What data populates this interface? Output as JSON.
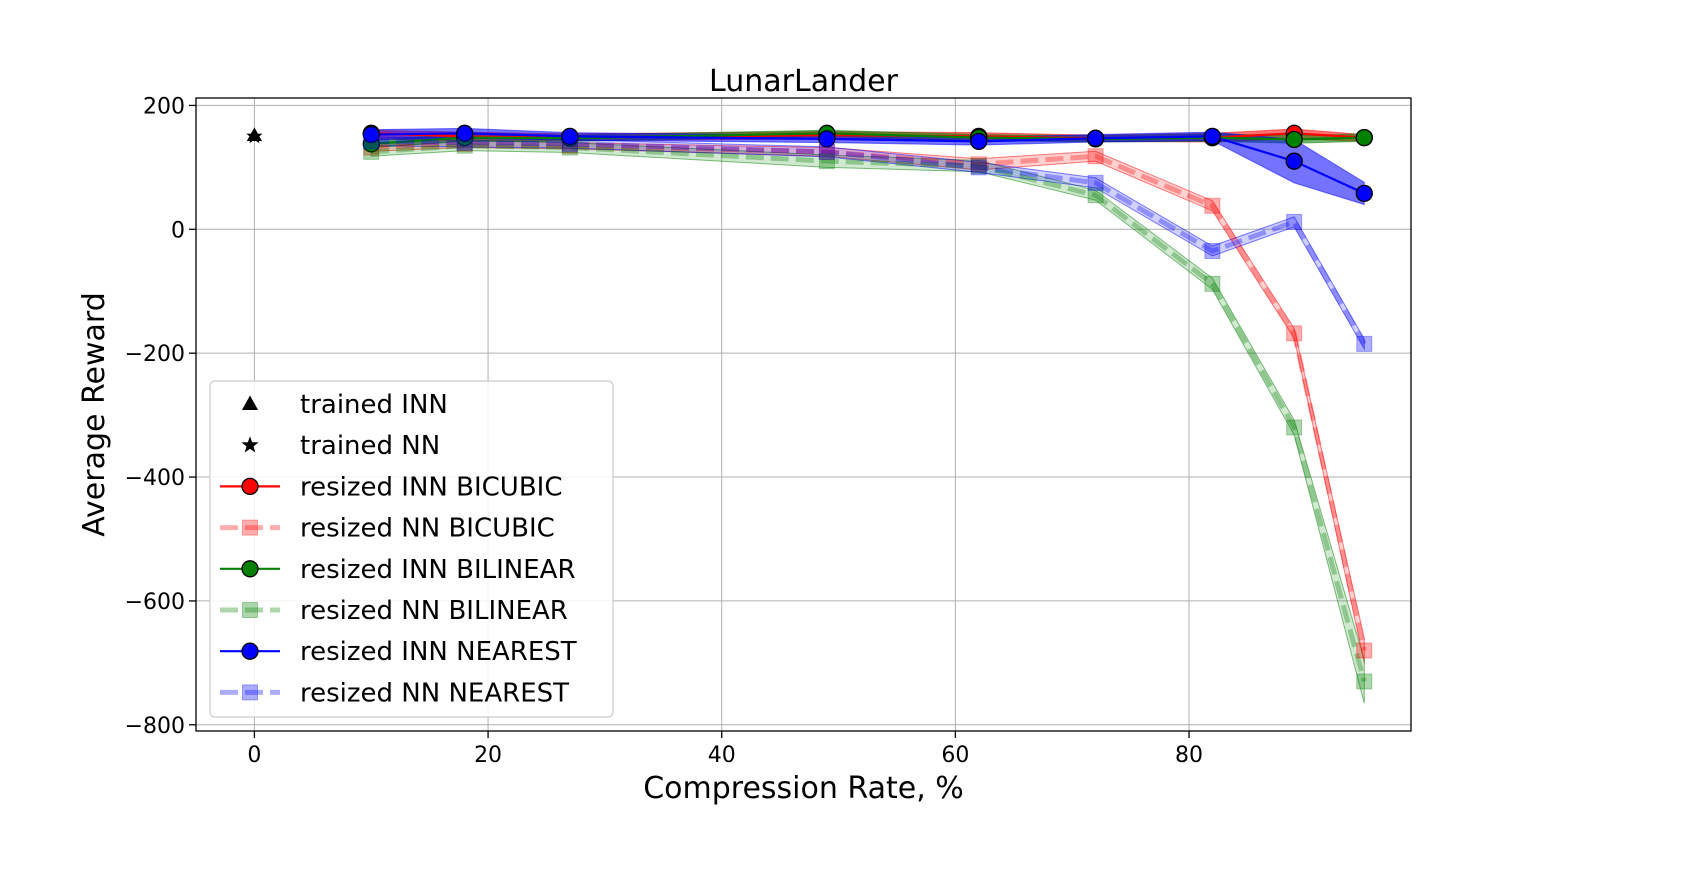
{
  "chart_data": {
    "type": "line",
    "title": "LunarLander",
    "xlabel": "Compression Rate, %",
    "ylabel": "Average Reward",
    "xlim": [
      -5,
      99
    ],
    "ylim": [
      -810,
      212
    ],
    "xticks": [
      0,
      20,
      40,
      60,
      80
    ],
    "yticks": [
      200,
      0,
      -200,
      -400,
      -600,
      -800
    ],
    "xtick_labels": [
      "0",
      "20",
      "40",
      "60",
      "80"
    ],
    "ytick_labels": [
      "200",
      "0",
      "−200",
      "−400",
      "−600",
      "−800"
    ],
    "grid": true,
    "legend_position": "lower-left",
    "x": [
      10,
      18,
      27,
      49,
      62,
      72,
      82,
      89,
      95
    ],
    "reference_points": [
      {
        "name": "trained INN",
        "marker": "triangle",
        "color": "#000000",
        "x": 0,
        "y": 150
      },
      {
        "name": "trained NN",
        "marker": "star",
        "color": "#000000",
        "x": 0,
        "y": 150
      }
    ],
    "series": [
      {
        "name": "resized INN BICUBIC",
        "color": "#ff0000",
        "style": "solid",
        "marker": "circle",
        "values": [
          155,
          150,
          148,
          152,
          150,
          147,
          148,
          155,
          148
        ],
        "lower": [
          146,
          143,
          143,
          146,
          144,
          142,
          141,
          146,
          142
        ],
        "upper": [
          160,
          157,
          154,
          158,
          156,
          152,
          155,
          162,
          153
        ]
      },
      {
        "name": "resized NN BICUBIC",
        "color": "#ff0000",
        "style": "dashed",
        "marker": "square",
        "values": [
          132,
          138,
          135,
          125,
          105,
          118,
          38,
          -168,
          -680
        ],
        "lower": [
          126,
          132,
          130,
          118,
          96,
          110,
          30,
          -176,
          -700
        ],
        "upper": [
          138,
          144,
          140,
          132,
          114,
          126,
          46,
          -160,
          -660
        ]
      },
      {
        "name": "resized INN BILINEAR",
        "color": "#008000",
        "style": "solid",
        "marker": "circle",
        "values": [
          138,
          148,
          147,
          155,
          148,
          146,
          148,
          145,
          148
        ],
        "lower": [
          132,
          142,
          142,
          150,
          143,
          141,
          142,
          139,
          142
        ],
        "upper": [
          144,
          154,
          152,
          160,
          153,
          151,
          154,
          151,
          154
        ]
      },
      {
        "name": "resized NN BILINEAR",
        "color": "#008000",
        "style": "dashed",
        "marker": "square",
        "values": [
          125,
          135,
          132,
          110,
          102,
          55,
          -88,
          -320,
          -730
        ],
        "lower": [
          118,
          127,
          124,
          100,
          93,
          47,
          -97,
          -332,
          -765
        ],
        "upper": [
          132,
          143,
          140,
          120,
          111,
          63,
          -79,
          -308,
          -695
        ]
      },
      {
        "name": "resized INN NEAREST",
        "color": "#0000ff",
        "style": "solid",
        "marker": "circle",
        "values": [
          153,
          155,
          150,
          146,
          142,
          147,
          150,
          110,
          58
        ],
        "lower": [
          145,
          147,
          144,
          140,
          136,
          141,
          143,
          75,
          40
        ],
        "upper": [
          161,
          163,
          156,
          152,
          148,
          153,
          157,
          145,
          76
        ]
      },
      {
        "name": "resized NN NEAREST",
        "color": "#0000ff",
        "style": "dashed",
        "marker": "square",
        "values": [
          142,
          140,
          138,
          125,
          100,
          75,
          -35,
          12,
          -185
        ],
        "lower": [
          135,
          133,
          131,
          117,
          92,
          67,
          -43,
          4,
          -193
        ],
        "upper": [
          149,
          147,
          145,
          133,
          108,
          83,
          -27,
          20,
          -177
        ]
      }
    ]
  }
}
